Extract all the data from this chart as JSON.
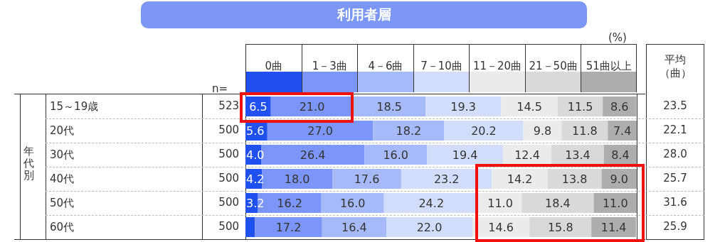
{
  "chart_data": {
    "type": "bar",
    "orientation": "horizontal",
    "stacked": true,
    "title": "利用者層",
    "categories": [
      "15～19歳",
      "20代",
      "30代",
      "40代",
      "50代",
      "60代"
    ],
    "series": [
      {
        "name": "0曲",
        "color": "#2150f0",
        "values": [
          6.5,
          5.6,
          4.0,
          4.2,
          3.2,
          2.4
        ],
        "value_labels": [
          "6.5",
          "5.6",
          "4.0",
          "4.2",
          "3.2",
          null
        ]
      },
      {
        "name": "1－3曲",
        "color": "#7b96f8",
        "values": [
          21.0,
          27.0,
          26.4,
          18.0,
          16.2,
          17.2
        ],
        "value_labels": [
          "21.0",
          "27.0",
          "26.4",
          "18.0",
          "16.2",
          "17.2"
        ]
      },
      {
        "name": "4－6曲",
        "color": "#a6b9f9",
        "values": [
          18.5,
          18.2,
          16.0,
          17.6,
          16.0,
          16.4
        ],
        "value_labels": [
          "18.5",
          "18.2",
          "16.0",
          "17.6",
          "16.0",
          "16.4"
        ]
      },
      {
        "name": "7－10曲",
        "color": "#d2ddfc",
        "values": [
          19.3,
          20.2,
          19.4,
          23.2,
          24.2,
          22.0
        ],
        "value_labels": [
          "19.3",
          "20.2",
          "19.4",
          "23.2",
          "24.2",
          "22.0"
        ]
      },
      {
        "name": "11－20曲",
        "color": "#ebebeb",
        "values": [
          14.5,
          9.8,
          12.4,
          14.2,
          11.0,
          14.6
        ],
        "value_labels": [
          "14.5",
          "9.8",
          "12.4",
          "14.2",
          "11.0",
          "14.6"
        ]
      },
      {
        "name": "21－50曲",
        "color": "#d9d9d9",
        "values": [
          11.5,
          11.8,
          13.4,
          13.8,
          18.4,
          15.8
        ],
        "value_labels": [
          "11.5",
          "11.8",
          "13.4",
          "13.8",
          "18.4",
          "15.8"
        ]
      },
      {
        "name": "51曲以上",
        "color": "#adadad",
        "values": [
          8.6,
          7.4,
          8.4,
          9.0,
          11.0,
          11.4
        ],
        "value_labels": [
          "8.6",
          "7.4",
          "8.4",
          "9.0",
          "11.0",
          "11.4"
        ]
      }
    ],
    "xlim": [
      0,
      100
    ],
    "tick_labels": false,
    "legend": "top",
    "annotations": [
      "(%)",
      "n=",
      "平均（曲）",
      "年代別",
      "523",
      "500",
      "500",
      "500",
      "500",
      "500",
      "23.5",
      "22.1",
      "28.0",
      "25.7",
      "31.6",
      "25.9"
    ]
  }
}
